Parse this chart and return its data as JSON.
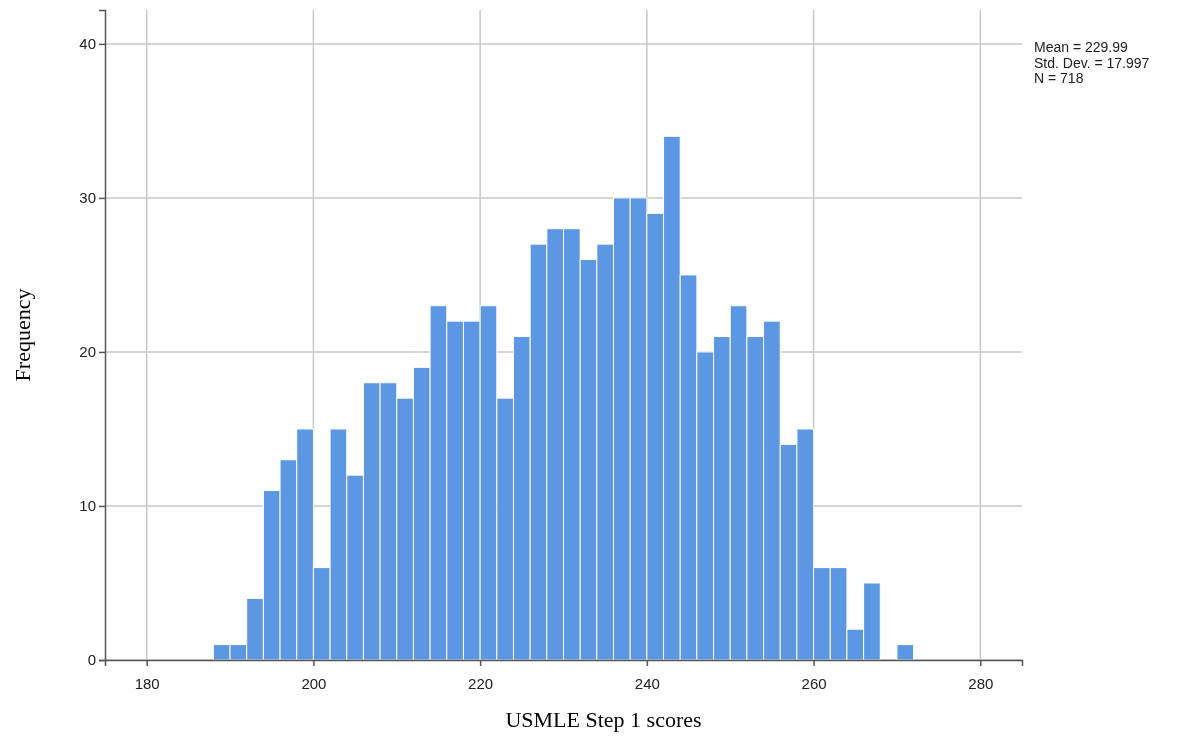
{
  "chart_data": {
    "type": "histogram",
    "xlabel": "USMLE Step 1 scores",
    "ylabel": "Frequency",
    "bins": [
      188,
      190,
      192,
      194,
      196,
      198,
      200,
      202,
      204,
      206,
      208,
      210,
      212,
      214,
      216,
      218,
      220,
      222,
      224,
      226,
      228,
      230,
      232,
      234,
      236,
      238,
      240,
      242,
      244,
      246,
      248,
      250,
      252,
      254,
      256,
      258,
      260,
      262,
      264,
      266,
      268,
      270,
      272
    ],
    "values": [
      1,
      1,
      4,
      11,
      13,
      15,
      6,
      15,
      12,
      18,
      18,
      17,
      19,
      23,
      22,
      22,
      23,
      17,
      21,
      27,
      28,
      28,
      26,
      27,
      30,
      30,
      29,
      34,
      25,
      20,
      21,
      23,
      21,
      22,
      14,
      15,
      6,
      6,
      2,
      5,
      0,
      1
    ],
    "color": "#5b97e3",
    "xlim": [
      175,
      285
    ],
    "xticks": [
      180,
      200,
      220,
      240,
      260,
      280
    ],
    "ylim": [
      0,
      42.2
    ],
    "yticks": [
      0,
      10,
      20,
      30,
      40
    ],
    "grid": true,
    "annotations": [
      "Mean = 229.99",
      "Std. Dev. = 17.997",
      "N = 718"
    ]
  }
}
